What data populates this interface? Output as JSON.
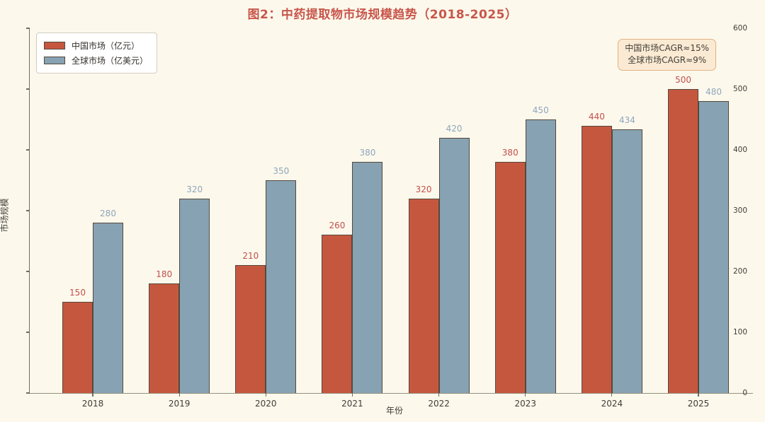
{
  "title": "图2：中药提取物市场规模趋势（2018-2025）",
  "chart_data": {
    "type": "bar",
    "title": "图2：中药提取物市场规模趋势（2018-2025）",
    "categories": [
      "2018",
      "2019",
      "2020",
      "2021",
      "2022",
      "2023",
      "2024",
      "2025"
    ],
    "series": [
      {
        "name": "中国市场（亿元）",
        "color": "#c6573f",
        "label_color": "#c0504d",
        "values": [
          150,
          180,
          210,
          260,
          320,
          380,
          440,
          500
        ]
      },
      {
        "name": "全球市场（亿美元）",
        "color": "#87a2b3",
        "label_color": "#8da7bb",
        "values": [
          280,
          320,
          350,
          380,
          420,
          450,
          434,
          480
        ]
      }
    ],
    "xlabel": "年份",
    "ylabel": "市场规模",
    "ylim": [
      0,
      600
    ],
    "yticks": [
      0,
      100,
      200,
      300,
      400,
      500,
      600
    ],
    "grid": false,
    "legend_position": "upper-left",
    "bar_labels_shown": true,
    "annotation": {
      "lines": [
        "中国市场CAGR≈15%",
        "全球市场CAGR≈9%"
      ]
    }
  },
  "colors": {
    "background": "#fdf8ec",
    "title": "#c8564b",
    "bar_border": "#55493b",
    "axis_text": "#3f3d37",
    "annotation_bg": "#fbead3",
    "annotation_border": "#e0b183"
  }
}
